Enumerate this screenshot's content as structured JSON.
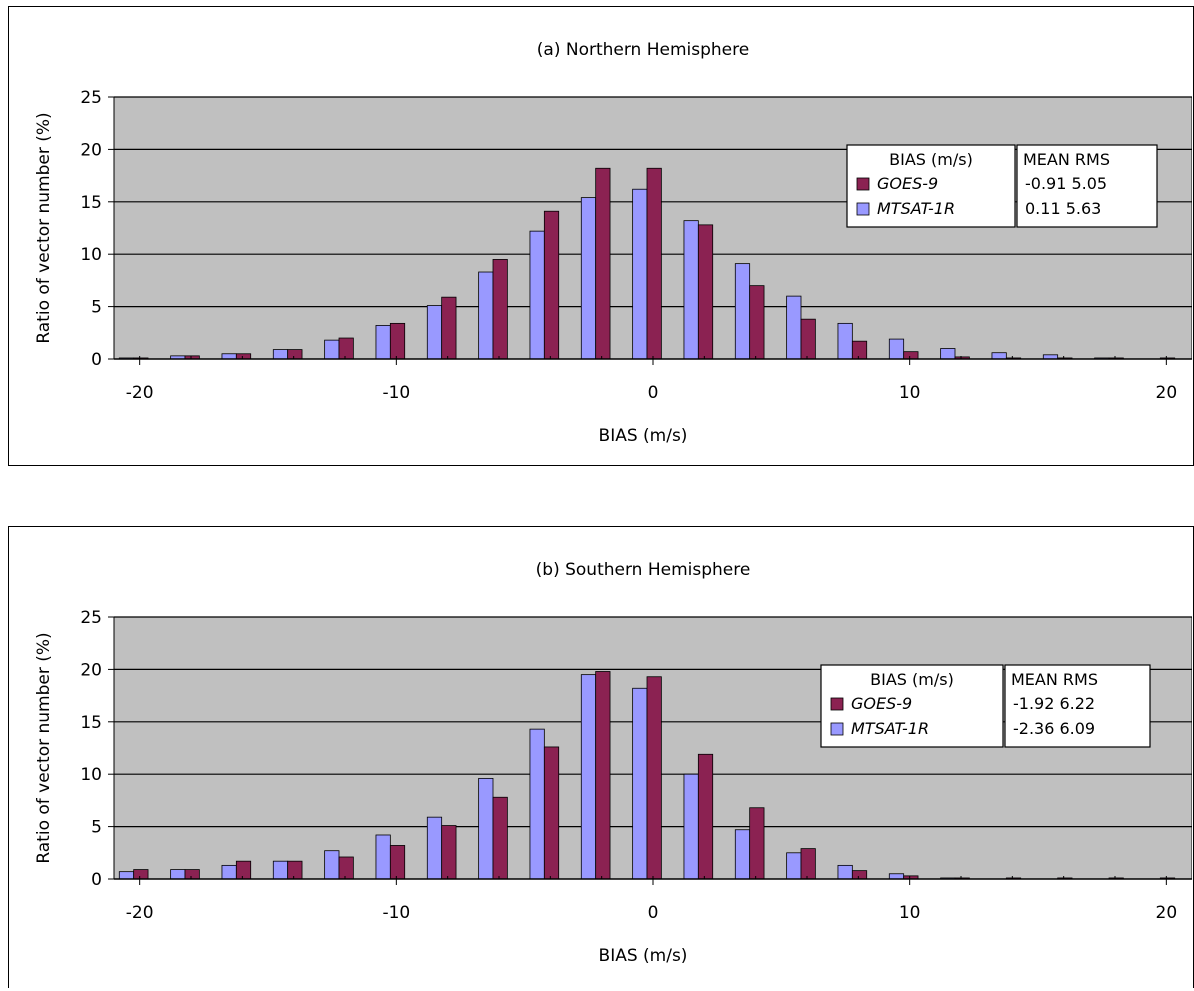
{
  "colors": {
    "goes": "#8B2252",
    "mtsat": "#9999FF",
    "plot_bg": "#C0C0C0"
  },
  "chart_data": [
    {
      "type": "bar",
      "title": "(a) Northern Hemisphere",
      "xlabel": "BIAS (m/s)",
      "ylabel": "Ratio of vector number (%)",
      "ylim": [
        0,
        25
      ],
      "yticks": [
        0,
        5,
        10,
        15,
        20,
        25
      ],
      "xlim": [
        -21,
        21
      ],
      "xticks": [
        -20,
        -10,
        0,
        10,
        20
      ],
      "grid": true,
      "x": [
        -20,
        -18,
        -16,
        -14,
        -12,
        -10,
        -8,
        -6,
        -4,
        -2,
        0,
        2,
        4,
        6,
        8,
        10,
        12,
        14,
        16,
        18,
        20
      ],
      "series": [
        {
          "name": "MTSAT-1R",
          "values": [
            0.1,
            0.3,
            0.5,
            0.9,
            1.8,
            3.2,
            5.1,
            8.3,
            12.2,
            15.4,
            16.2,
            13.2,
            9.1,
            6.0,
            3.4,
            1.9,
            1.0,
            0.6,
            0.4,
            0.1,
            0.0
          ]
        },
        {
          "name": "GOES-9",
          "values": [
            0.1,
            0.3,
            0.5,
            0.9,
            2.0,
            3.4,
            5.9,
            9.5,
            14.1,
            18.2,
            18.2,
            12.8,
            7.0,
            3.8,
            1.7,
            0.7,
            0.2,
            0.1,
            0.1,
            0.1,
            0.1
          ]
        }
      ],
      "legend": {
        "placement": "top-right",
        "header_left": "BIAS (m/s)",
        "header_right": "MEAN RMS",
        "rows": [
          {
            "name": "GOES-9",
            "stats": "-0.91 5.05"
          },
          {
            "name": "MTSAT-1R",
            "stats": "0.11  5.63"
          }
        ]
      }
    },
    {
      "type": "bar",
      "title": "(b) Southern Hemisphere",
      "xlabel": "BIAS (m/s)",
      "ylabel": "Ratio of vector number (%)",
      "ylim": [
        0,
        25
      ],
      "yticks": [
        0,
        5,
        10,
        15,
        20,
        25
      ],
      "xlim": [
        -21,
        21
      ],
      "xticks": [
        -20,
        -10,
        0,
        10,
        20
      ],
      "grid": true,
      "x": [
        -20,
        -18,
        -16,
        -14,
        -12,
        -10,
        -8,
        -6,
        -4,
        -2,
        0,
        2,
        4,
        6,
        8,
        10,
        12,
        14,
        16,
        18,
        20
      ],
      "series": [
        {
          "name": "MTSAT-1R",
          "values": [
            0.7,
            0.9,
            1.3,
            1.7,
            2.7,
            4.2,
            5.9,
            9.6,
            14.3,
            19.5,
            18.2,
            10.0,
            4.7,
            2.5,
            1.3,
            0.5,
            0.1,
            0.0,
            0.0,
            0.0,
            0.0
          ]
        },
        {
          "name": "GOES-9",
          "values": [
            0.9,
            0.9,
            1.7,
            1.7,
            2.1,
            3.2,
            5.1,
            7.8,
            12.6,
            19.8,
            19.3,
            11.9,
            6.8,
            2.9,
            0.8,
            0.3,
            0.1,
            0.1,
            0.1,
            0.1,
            0.1
          ]
        }
      ],
      "legend": {
        "placement": "top-right",
        "header_left": "BIAS (m/s)",
        "header_right": "MEAN RMS",
        "rows": [
          {
            "name": "GOES-9",
            "stats": "-1.92 6.22"
          },
          {
            "name": "MTSAT-1R",
            "stats": "-2.36 6.09"
          }
        ]
      }
    }
  ]
}
